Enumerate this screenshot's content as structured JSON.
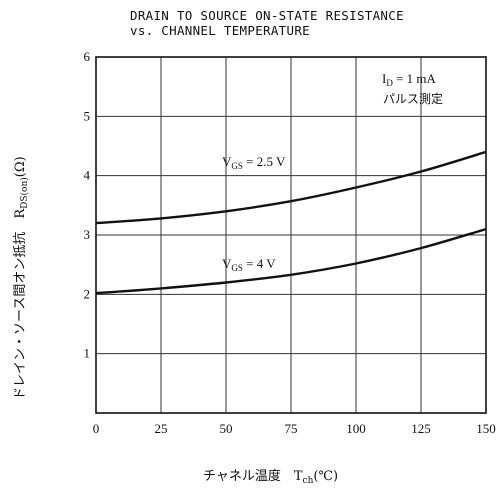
{
  "chart_data": {
    "type": "line",
    "title": [
      "DRAIN TO SOURCE ON-STATE RESISTANCE",
      "vs. CHANNEL TEMPERATURE"
    ],
    "xlabel": "チャネル温度　T",
    "xlabel_sub": "ch",
    "xlabel_unit": "(℃)",
    "ylabel": "ドレイン・ソース間オン抵抗　R",
    "ylabel_sub": "DS(on)",
    "ylabel_unit": "(Ω)",
    "xlim": [
      0,
      150
    ],
    "ylim": [
      0,
      6
    ],
    "xticks": [
      0,
      25,
      50,
      75,
      100,
      125,
      150
    ],
    "yticks": [
      1,
      2,
      3,
      4,
      5,
      6
    ],
    "grid": true,
    "conditions": [
      "I_D = 1 mA",
      "パルス測定"
    ],
    "series": [
      {
        "name": "V_GS = 2.5 V",
        "x": [
          0,
          25,
          50,
          75,
          100,
          125,
          150
        ],
        "y": [
          3.2,
          3.28,
          3.4,
          3.57,
          3.8,
          4.07,
          4.4
        ]
      },
      {
        "name": "V_GS = 4 V",
        "x": [
          0,
          25,
          50,
          75,
          100,
          125,
          150
        ],
        "y": [
          2.02,
          2.1,
          2.2,
          2.33,
          2.52,
          2.78,
          3.1
        ]
      }
    ]
  }
}
